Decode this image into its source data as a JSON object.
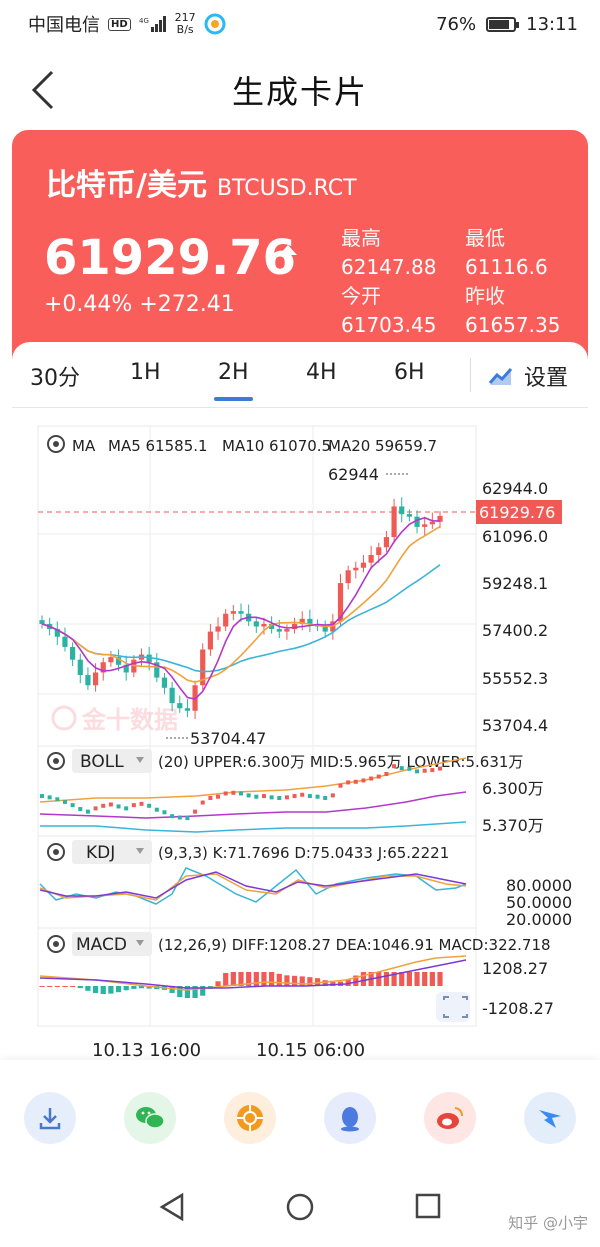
{
  "status_bar": {
    "carrier": "中国电信",
    "hd": "HD",
    "net_speed_value": "217",
    "net_speed_unit": "B/s",
    "battery": "76%",
    "battery_level": 0.76,
    "time": "13:11"
  },
  "header": {
    "title": "生成卡片"
  },
  "card": {
    "name": "比特币/美元",
    "code": "BTCUSD.RCT",
    "price": "61929.76",
    "change": "+0.44% +272.41",
    "stats": [
      {
        "label": "最高",
        "value": "62147.88"
      },
      {
        "label": "最低",
        "value": "61116.6"
      },
      {
        "label": "今开",
        "value": "61703.45"
      },
      {
        "label": "昨收",
        "value": "61657.35"
      }
    ],
    "colors": {
      "accent": "#f95e5a",
      "tab_indicator": "#3d7bd8"
    }
  },
  "tabs": [
    {
      "label": "30分",
      "active": false
    },
    {
      "label": "1H",
      "active": false
    },
    {
      "label": "2H",
      "active": true
    },
    {
      "label": "4H",
      "active": false
    },
    {
      "label": "6H",
      "active": false
    }
  ],
  "settings_label": "设置",
  "chart": {
    "ma_label": "MA",
    "ma_values": [
      "MA5 61585.1",
      "MA10 61070.5",
      "MA20 59659.7"
    ],
    "y_ticks": [
      "62944.0",
      "61096.0",
      "59248.1",
      "57400.2",
      "55552.3",
      "53704.4"
    ],
    "current_price": "61929.76",
    "high_label": "62944",
    "low_label": "53704.47",
    "watermark": "金十数据",
    "boll": {
      "name": "BOLL",
      "params": "(20) UPPER:6.300万 MID:5.965万 LOWER:5.631万",
      "ticks": [
        "6.300万",
        "5.370万"
      ]
    },
    "kdj": {
      "name": "KDJ",
      "params": "(9,3,3) K:71.7696 D:75.0433 J:65.2221",
      "ticks": [
        "80.0000",
        "50.0000",
        "20.0000"
      ]
    },
    "macd": {
      "name": "MACD",
      "params": "(12,26,9) DIFF:1208.27 DEA:1046.91 MACD:322.718",
      "ticks": [
        "1208.27",
        "-1208.27"
      ]
    },
    "x_labels": [
      "10.13 16:00",
      "10.15 06:00"
    ]
  },
  "chart_data": {
    "type": "candlestick",
    "title": "",
    "ylim": [
      53704.4,
      62944.0
    ],
    "series": [
      {
        "name": "MA5",
        "color": "#b238c9"
      },
      {
        "name": "MA10",
        "color": "#f0a23a"
      },
      {
        "name": "MA20",
        "color": "#3ab4d8"
      }
    ],
    "close_approx": [
      57700,
      57500,
      57200,
      56800,
      56300,
      55700,
      55300,
      55800,
      56200,
      56400,
      56100,
      55800,
      56300,
      56500,
      56200,
      55600,
      55200,
      54600,
      54400,
      54300,
      55300,
      56700,
      57400,
      57600,
      58100,
      58200,
      58100,
      57800,
      57600,
      57700,
      57500,
      57400,
      57500,
      57700,
      57900,
      57700,
      57600,
      57400,
      57800,
      59300,
      59800,
      59900,
      60100,
      60400,
      60700,
      61100,
      62300,
      62000,
      61900,
      61500,
      61600,
      61700,
      61929.76
    ]
  },
  "share": [
    "download-icon",
    "wechat-icon",
    "moments-icon",
    "qq-icon",
    "weibo-icon",
    "dingtalk-icon"
  ],
  "footer_credit": "知乎 @小宇"
}
